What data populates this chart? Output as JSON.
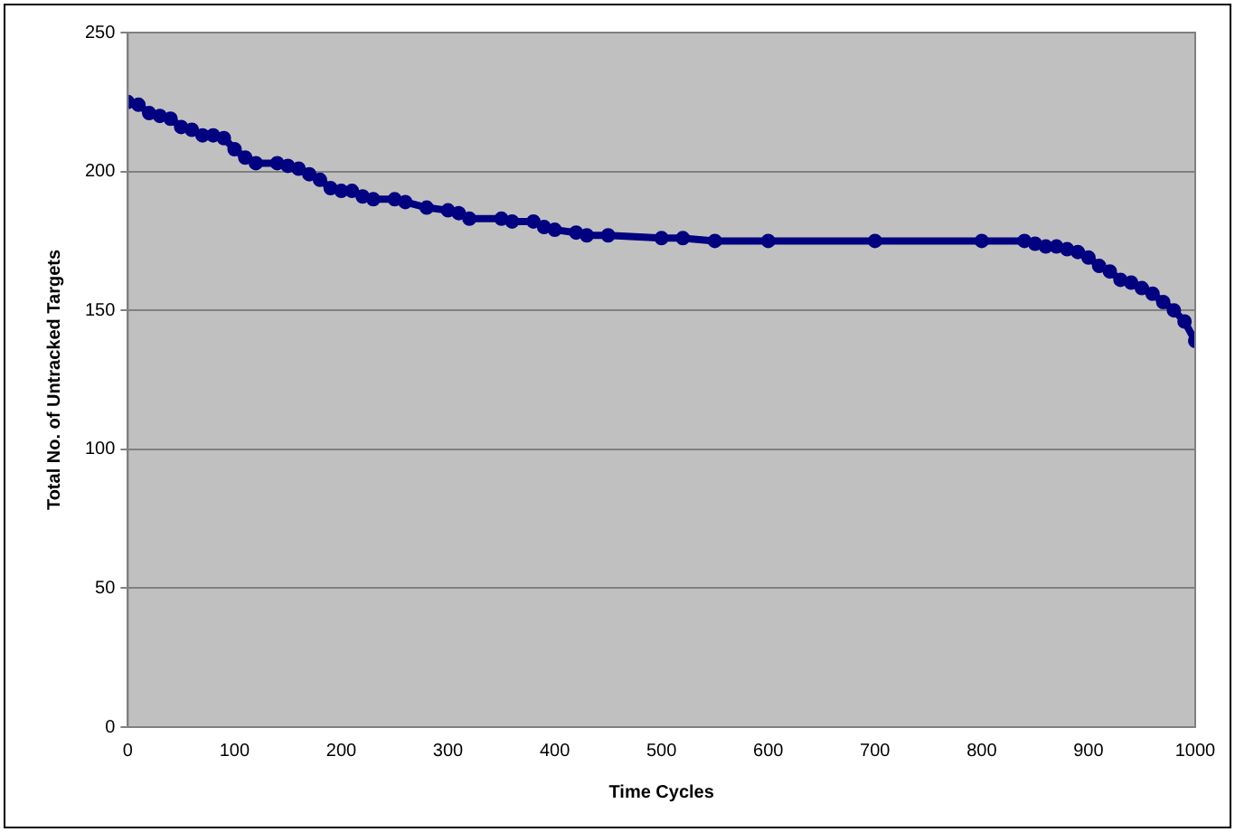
{
  "chart_data": {
    "type": "line",
    "xlabel": "Time Cycles",
    "ylabel": "Total No. of Untracked Targets",
    "x": [
      0,
      10,
      20,
      30,
      40,
      50,
      60,
      70,
      80,
      90,
      100,
      110,
      120,
      140,
      150,
      160,
      170,
      180,
      190,
      200,
      210,
      220,
      230,
      250,
      260,
      280,
      300,
      310,
      320,
      350,
      360,
      380,
      390,
      400,
      420,
      430,
      450,
      500,
      520,
      550,
      600,
      700,
      800,
      840,
      850,
      860,
      870,
      880,
      890,
      900,
      910,
      920,
      930,
      940,
      950,
      960,
      970,
      980,
      990,
      1000
    ],
    "series": [
      {
        "color": "#000080",
        "values": [
          225,
          224,
          221,
          220,
          219,
          216,
          215,
          213,
          213,
          212,
          208,
          205,
          203,
          203,
          202,
          201,
          199,
          197,
          194,
          193,
          193,
          191,
          190,
          190,
          189,
          187,
          186,
          185,
          183,
          183,
          182,
          182,
          180,
          179,
          178,
          177,
          177,
          176,
          176,
          175,
          175,
          175,
          175,
          175,
          174,
          173,
          173,
          172,
          171,
          169,
          166,
          164,
          161,
          160,
          158,
          156,
          153,
          150,
          146,
          139
        ]
      }
    ],
    "xlim": [
      0,
      1000
    ],
    "xticks": [
      0,
      100,
      200,
      300,
      400,
      500,
      600,
      700,
      800,
      900,
      1000
    ],
    "ylim": [
      0,
      250
    ],
    "yticks": [
      0,
      50,
      100,
      150,
      200,
      250
    ],
    "grid": "y",
    "legend": false,
    "marker": "circle",
    "line_style": "solid"
  }
}
